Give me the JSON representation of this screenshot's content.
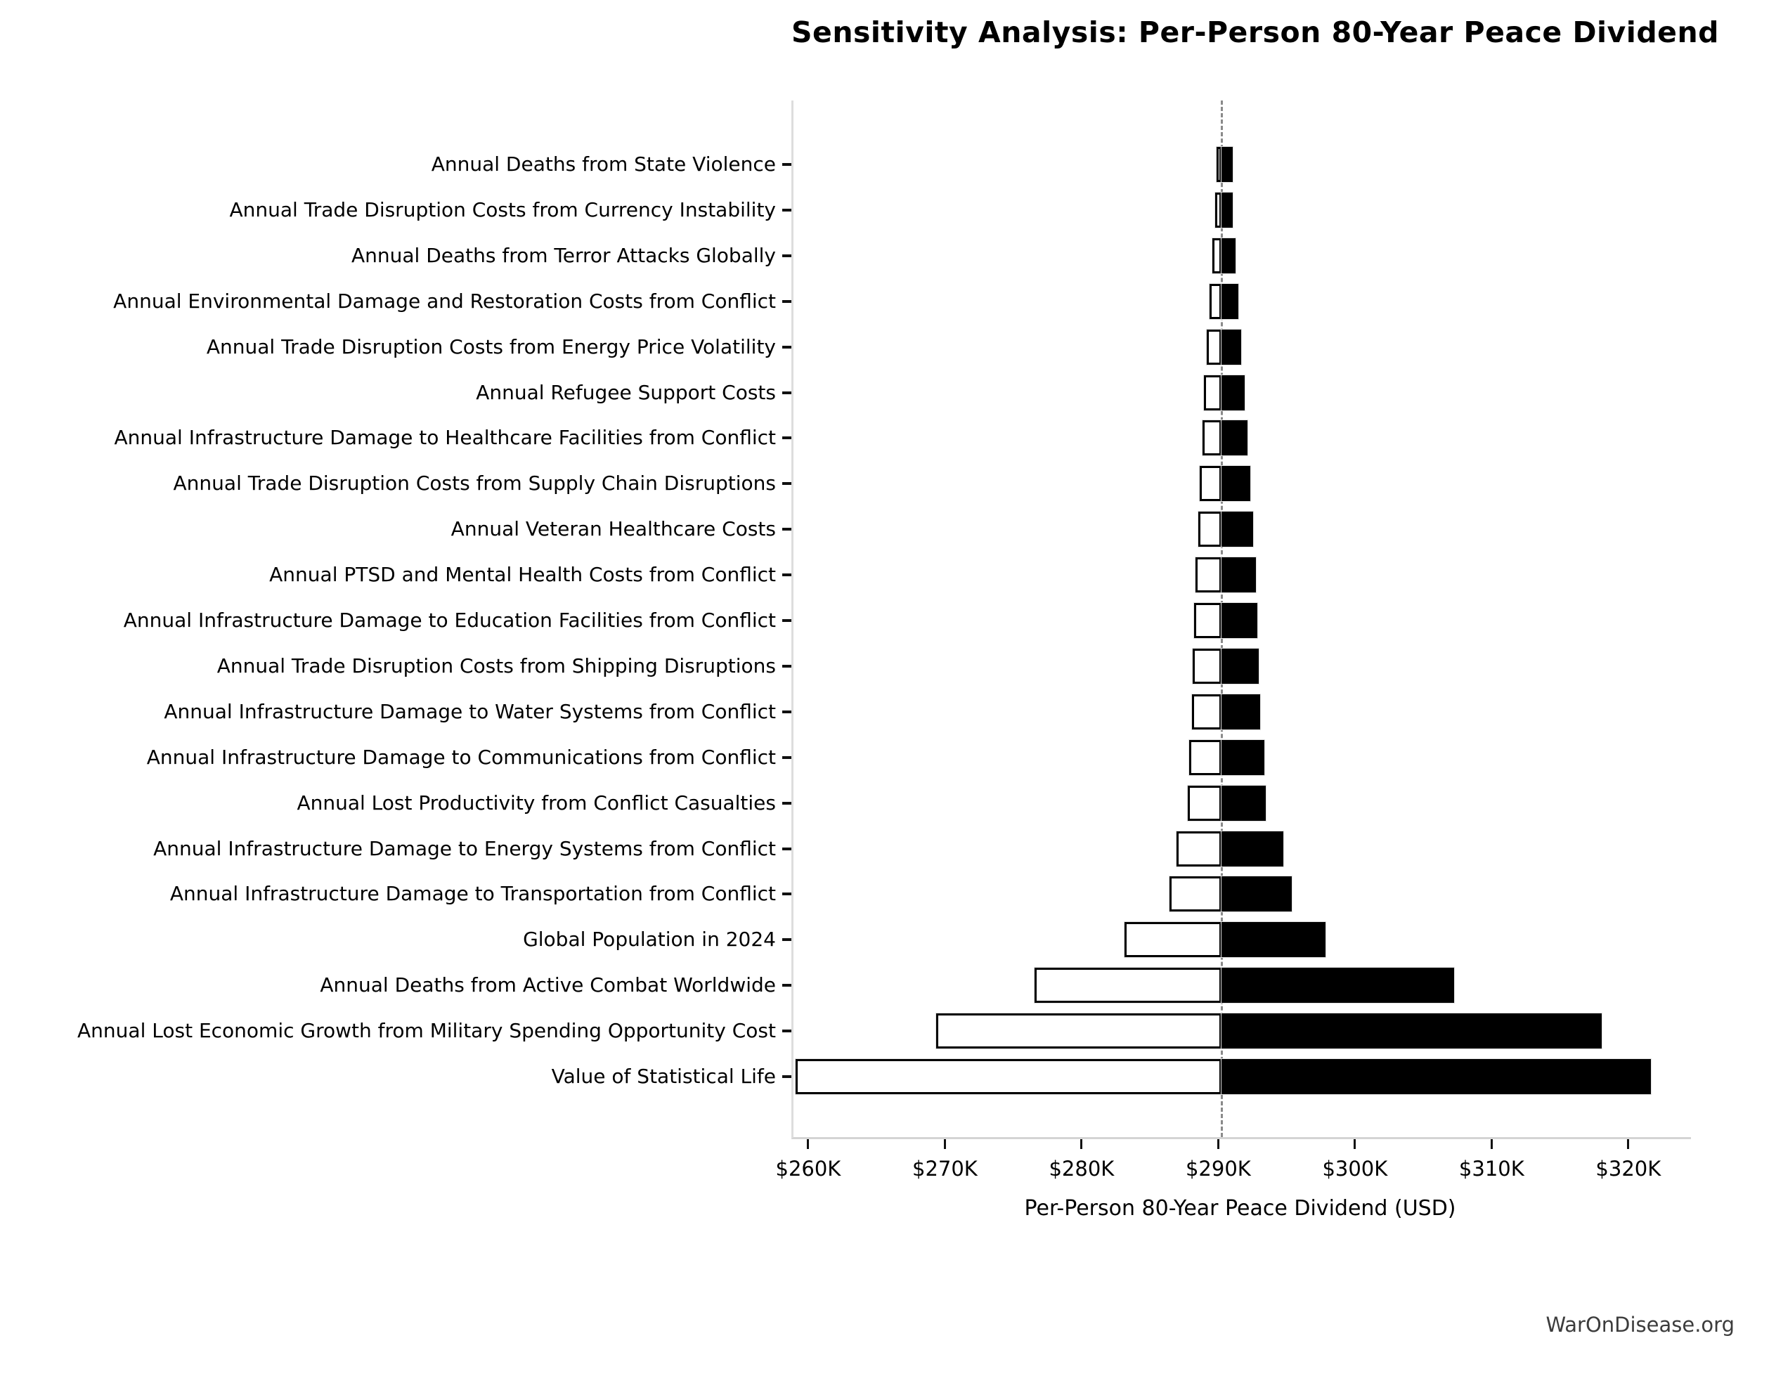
{
  "title": "Sensitivity Analysis: Per-Person 80-Year Peace Dividend",
  "watermark": "WarOnDisease.org",
  "chart_data": {
    "type": "bar",
    "subtype": "tornado",
    "orientation": "horizontal",
    "title": "Sensitivity Analysis: Per-Person 80-Year Peace Dividend",
    "xlabel": "Per-Person 80-Year Peace Dividend (USD)",
    "ylabel": "",
    "legend": "none",
    "grid": false,
    "base_value": 290100,
    "xlim": [
      258770,
      324430
    ],
    "x_ticks": [
      260000,
      270000,
      280000,
      290000,
      300000,
      310000,
      320000
    ],
    "x_tick_labels": [
      "$260K",
      "$270K",
      "$280K",
      "$290K",
      "$300K",
      "$310K",
      "$320K"
    ],
    "categories": [
      "Annual Deaths from State Violence",
      "Annual Trade Disruption Costs from Currency Instability",
      "Annual Deaths from Terror Attacks Globally",
      "Annual Environmental Damage and Restoration Costs from Conflict",
      "Annual Trade Disruption Costs from Energy Price Volatility",
      "Annual Refugee Support Costs",
      "Annual Infrastructure Damage to Healthcare Facilities from Conflict",
      "Annual Trade Disruption Costs from Supply Chain Disruptions",
      "Annual Veteran Healthcare Costs",
      "Annual PTSD and Mental Health Costs from Conflict",
      "Annual Infrastructure Damage to Education Facilities from Conflict",
      "Annual Trade Disruption Costs from Shipping Disruptions",
      "Annual Infrastructure Damage to Water Systems from Conflict",
      "Annual Infrastructure Damage to Communications from Conflict",
      "Annual Lost Productivity from Conflict Casualties",
      "Annual Infrastructure Damage to Energy Systems from Conflict",
      "Annual Infrastructure Damage to Transportation from Conflict",
      "Global Population in 2024",
      "Annual Deaths from Active Combat Worldwide",
      "Annual Lost Economic Growth from Military Spending Opportunity Cost",
      "Value of Statistical Life"
    ],
    "series": [
      {
        "name": "low_estimate",
        "fill": "white",
        "values": [
          289700,
          289600,
          289400,
          289200,
          289000,
          288800,
          288700,
          288500,
          288400,
          288200,
          288100,
          288000,
          287900,
          287700,
          287600,
          286800,
          286300,
          283000,
          276400,
          269200,
          258900
        ]
      },
      {
        "name": "high_estimate",
        "fill": "black",
        "values": [
          290900,
          290900,
          291100,
          291300,
          291500,
          291800,
          292000,
          292200,
          292400,
          292600,
          292700,
          292800,
          292900,
          293200,
          293300,
          294600,
          295200,
          297700,
          307100,
          317900,
          321500
        ]
      }
    ],
    "colors": {
      "low_fill": "#ffffff",
      "high_fill": "#000000",
      "bar_edge": "#000000",
      "baseline_dash": "#8a8a8a",
      "spine": "#dddddd",
      "tick": "#111111",
      "text": "#000000",
      "watermark_text": "#3c3c3c",
      "background": "#ffffff"
    }
  }
}
